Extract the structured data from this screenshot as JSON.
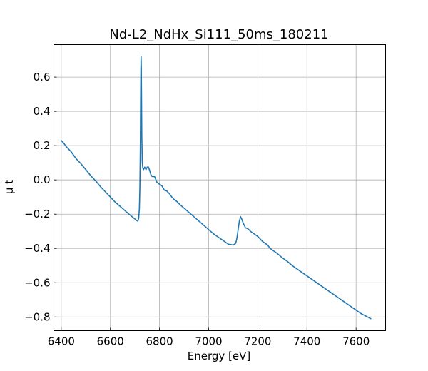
{
  "chart_data": {
    "type": "line",
    "title": "Nd-L2_NdHx_Si111_50ms_180211",
    "xlabel": "Energy [eV]",
    "ylabel": "μ t",
    "xlim": [
      6370,
      7720
    ],
    "ylim": [
      -0.88,
      0.79
    ],
    "xticks": [
      6400,
      6600,
      6800,
      7000,
      7200,
      7400,
      7600
    ],
    "yticks": [
      -0.8,
      -0.6,
      -0.4,
      -0.2,
      0.0,
      0.2,
      0.4,
      0.6
    ],
    "xtick_labels": [
      "6400",
      "6600",
      "6800",
      "7000",
      "7200",
      "7400",
      "7600"
    ],
    "ytick_labels": [
      "−0.8",
      "−0.6",
      "−0.4",
      "−0.2",
      "0.0",
      "0.2",
      "0.4",
      "0.6"
    ],
    "grid": true,
    "tick_direction": "in",
    "line_color": "#1f77b4",
    "series": [
      {
        "x": [
          6400,
          6410,
          6420,
          6430,
          6440,
          6450,
          6460,
          6470,
          6480,
          6500,
          6520,
          6540,
          6560,
          6580,
          6600,
          6620,
          6640,
          6660,
          6680,
          6700,
          6708,
          6712,
          6715,
          6718,
          6720,
          6722,
          6724,
          6725,
          6726,
          6727,
          6728,
          6730,
          6732,
          6735,
          6740,
          6745,
          6750,
          6755,
          6760,
          6765,
          6770,
          6780,
          6790,
          6800,
          6810,
          6820,
          6830,
          6840,
          6850,
          6860,
          6870,
          6880,
          6900,
          6920,
          6940,
          6960,
          6980,
          7000,
          7020,
          7040,
          7060,
          7080,
          7100,
          7110,
          7115,
          7120,
          7125,
          7130,
          7135,
          7140,
          7145,
          7150,
          7160,
          7170,
          7180,
          7190,
          7200,
          7210,
          7220,
          7230,
          7240,
          7250,
          7260,
          7280,
          7300,
          7320,
          7340,
          7360,
          7380,
          7400,
          7420,
          7440,
          7460,
          7480,
          7500,
          7520,
          7540,
          7560,
          7580,
          7600,
          7620,
          7640,
          7660
        ],
        "y": [
          0.23,
          0.215,
          0.195,
          0.18,
          0.165,
          0.145,
          0.125,
          0.11,
          0.095,
          0.06,
          0.025,
          -0.005,
          -0.04,
          -0.07,
          -0.1,
          -0.13,
          -0.155,
          -0.18,
          -0.205,
          -0.228,
          -0.238,
          -0.24,
          -0.225,
          -0.17,
          -0.05,
          0.2,
          0.6,
          0.72,
          0.65,
          0.45,
          0.25,
          0.1,
          0.07,
          0.06,
          0.075,
          0.06,
          0.075,
          0.075,
          0.055,
          0.03,
          0.02,
          0.02,
          -0.015,
          -0.025,
          -0.035,
          -0.06,
          -0.065,
          -0.08,
          -0.1,
          -0.115,
          -0.125,
          -0.14,
          -0.165,
          -0.19,
          -0.215,
          -0.24,
          -0.265,
          -0.29,
          -0.315,
          -0.335,
          -0.355,
          -0.375,
          -0.38,
          -0.37,
          -0.34,
          -0.29,
          -0.24,
          -0.215,
          -0.23,
          -0.25,
          -0.265,
          -0.28,
          -0.285,
          -0.3,
          -0.31,
          -0.32,
          -0.33,
          -0.345,
          -0.36,
          -0.37,
          -0.38,
          -0.4,
          -0.41,
          -0.43,
          -0.455,
          -0.475,
          -0.5,
          -0.52,
          -0.54,
          -0.56,
          -0.58,
          -0.6,
          -0.62,
          -0.64,
          -0.66,
          -0.68,
          -0.7,
          -0.72,
          -0.74,
          -0.76,
          -0.78,
          -0.795,
          -0.81
        ]
      }
    ]
  }
}
